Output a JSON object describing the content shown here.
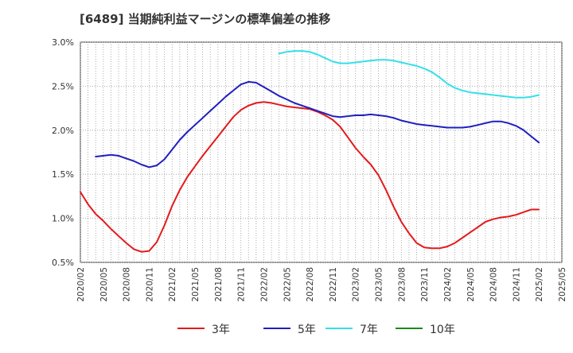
{
  "chart_data": {
    "type": "line",
    "title": "[6489]  当期純利益マージンの標準偏差の推移",
    "xlabel": "",
    "ylabel": "",
    "ylim": [
      0.5,
      3.0
    ],
    "xlim": [
      "2020-02",
      "2025-05"
    ],
    "grid": true,
    "legend_position": "bottom",
    "y_ticks": [
      "0.5%",
      "1.0%",
      "1.5%",
      "2.0%",
      "2.5%",
      "3.0%"
    ],
    "y_tick_values": [
      0.5,
      1.0,
      1.5,
      2.0,
      2.5,
      3.0
    ],
    "x_ticks": [
      "2020/02",
      "2020/05",
      "2020/08",
      "2020/11",
      "2021/02",
      "2021/05",
      "2021/08",
      "2021/11",
      "2022/02",
      "2022/05",
      "2022/08",
      "2022/11",
      "2023/02",
      "2023/05",
      "2023/08",
      "2023/11",
      "2024/02",
      "2024/05",
      "2024/08",
      "2024/11",
      "2025/02",
      "2025/05"
    ],
    "series": [
      {
        "name": "3年",
        "color": "#e31a1c",
        "x": [
          "2020-02",
          "2020-03",
          "2020-04",
          "2020-05",
          "2020-06",
          "2020-07",
          "2020-08",
          "2020-09",
          "2020-10",
          "2020-11",
          "2020-12",
          "2021-01",
          "2021-02",
          "2021-03",
          "2021-04",
          "2021-05",
          "2021-06",
          "2021-07",
          "2021-08",
          "2021-09",
          "2021-10",
          "2021-11",
          "2021-12",
          "2022-01",
          "2022-02",
          "2022-03",
          "2022-04",
          "2022-05",
          "2022-06",
          "2022-07",
          "2022-08",
          "2022-09",
          "2022-10",
          "2022-11",
          "2022-12",
          "2023-01",
          "2023-02",
          "2023-03",
          "2023-04",
          "2023-05",
          "2023-06",
          "2023-07",
          "2023-08",
          "2023-09",
          "2023-10",
          "2023-11",
          "2023-12",
          "2024-01",
          "2024-02",
          "2024-03",
          "2024-04",
          "2024-05",
          "2024-06",
          "2024-07",
          "2024-08",
          "2024-09",
          "2024-10",
          "2024-11",
          "2024-12",
          "2025-01",
          "2025-02"
        ],
        "values": [
          1.3,
          1.16,
          1.05,
          0.97,
          0.88,
          0.8,
          0.72,
          0.65,
          0.62,
          0.63,
          0.73,
          0.92,
          1.14,
          1.32,
          1.47,
          1.59,
          1.71,
          1.82,
          1.93,
          2.04,
          2.15,
          2.23,
          2.28,
          2.31,
          2.32,
          2.31,
          2.29,
          2.27,
          2.26,
          2.25,
          2.24,
          2.21,
          2.17,
          2.12,
          2.04,
          1.92,
          1.8,
          1.7,
          1.61,
          1.49,
          1.32,
          1.13,
          0.96,
          0.83,
          0.72,
          0.67,
          0.66,
          0.66,
          0.68,
          0.72,
          0.78,
          0.84,
          0.9,
          0.96,
          0.99,
          1.01,
          1.02,
          1.04,
          1.07,
          1.1,
          1.1
        ]
      },
      {
        "name": "5年",
        "color": "#1f1fbf",
        "x": [
          "2020-04",
          "2020-05",
          "2020-06",
          "2020-07",
          "2020-08",
          "2020-09",
          "2020-10",
          "2020-11",
          "2020-12",
          "2021-01",
          "2021-02",
          "2021-03",
          "2021-04",
          "2021-05",
          "2021-06",
          "2021-07",
          "2021-08",
          "2021-09",
          "2021-10",
          "2021-11",
          "2021-12",
          "2022-01",
          "2022-02",
          "2022-03",
          "2022-04",
          "2022-05",
          "2022-06",
          "2022-07",
          "2022-08",
          "2022-09",
          "2022-10",
          "2022-11",
          "2022-12",
          "2023-01",
          "2023-02",
          "2023-03",
          "2023-04",
          "2023-05",
          "2023-06",
          "2023-07",
          "2023-08",
          "2023-09",
          "2023-10",
          "2023-11",
          "2023-12",
          "2024-01",
          "2024-02",
          "2024-03",
          "2024-04",
          "2024-05",
          "2024-06",
          "2024-07",
          "2024-08",
          "2024-09",
          "2024-10",
          "2024-11",
          "2024-12",
          "2025-01",
          "2025-02"
        ],
        "values": [
          1.7,
          1.71,
          1.72,
          1.71,
          1.68,
          1.65,
          1.61,
          1.58,
          1.6,
          1.67,
          1.78,
          1.89,
          1.98,
          2.06,
          2.14,
          2.22,
          2.3,
          2.38,
          2.45,
          2.52,
          2.55,
          2.54,
          2.49,
          2.44,
          2.39,
          2.35,
          2.31,
          2.28,
          2.25,
          2.22,
          2.19,
          2.16,
          2.15,
          2.16,
          2.17,
          2.17,
          2.18,
          2.17,
          2.16,
          2.14,
          2.11,
          2.09,
          2.07,
          2.06,
          2.05,
          2.04,
          2.03,
          2.03,
          2.03,
          2.04,
          2.06,
          2.08,
          2.1,
          2.1,
          2.08,
          2.05,
          2.0,
          1.93,
          1.86
        ]
      },
      {
        "name": "7年",
        "color": "#33e0e8",
        "x": [
          "2022-04",
          "2022-05",
          "2022-06",
          "2022-07",
          "2022-08",
          "2022-09",
          "2022-10",
          "2022-11",
          "2022-12",
          "2023-01",
          "2023-02",
          "2023-03",
          "2023-04",
          "2023-05",
          "2023-06",
          "2023-07",
          "2023-08",
          "2023-09",
          "2023-10",
          "2023-11",
          "2023-12",
          "2024-01",
          "2024-02",
          "2024-03",
          "2024-04",
          "2024-05",
          "2024-06",
          "2024-07",
          "2024-08",
          "2024-09",
          "2024-10",
          "2024-11",
          "2024-12",
          "2025-01",
          "2025-02"
        ],
        "values": [
          2.87,
          2.89,
          2.9,
          2.9,
          2.89,
          2.86,
          2.82,
          2.78,
          2.76,
          2.76,
          2.77,
          2.78,
          2.79,
          2.8,
          2.8,
          2.79,
          2.77,
          2.75,
          2.73,
          2.7,
          2.66,
          2.6,
          2.53,
          2.48,
          2.45,
          2.43,
          2.42,
          2.41,
          2.4,
          2.39,
          2.38,
          2.37,
          2.37,
          2.38,
          2.4
        ]
      },
      {
        "name": "10年",
        "color": "#1a8a1a",
        "x": [],
        "values": []
      }
    ]
  }
}
